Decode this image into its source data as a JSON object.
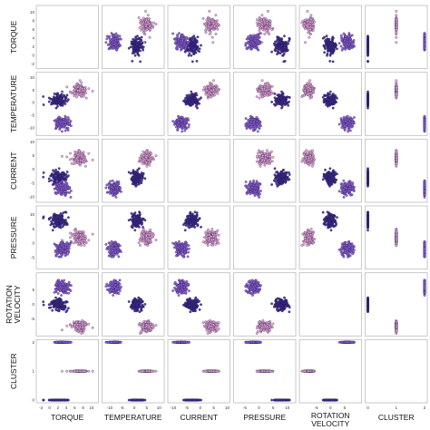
{
  "chart_data": {
    "type": "scatter",
    "kind": "pair-plot",
    "variables": [
      "TORQUE",
      "TEMPERATURE",
      "CURRENT",
      "PRESSURE",
      "ROTATION\nVELOCITY",
      "CLUSTER"
    ],
    "column_labels": [
      "TORQUE",
      "TEMPERATURE",
      "CURRENT",
      "PRESSURE",
      "ROTATION VELOCITY",
      "CLUSTER"
    ],
    "row_labels": [
      "TORQUE",
      "TEMPERATURE",
      "CURRENT",
      "PRESSURE",
      "ROTATION VELOCITY",
      "CLUSTER"
    ],
    "ticks": {
      "TORQUE": [
        -2,
        0,
        2,
        4,
        6,
        8,
        10
      ],
      "TEMPERATURE": [
        -10,
        -5,
        0,
        5,
        10
      ],
      "CURRENT": [
        -10,
        -5,
        0,
        5,
        10
      ],
      "PRESSURE": [
        -5,
        0,
        5,
        10
      ],
      "ROTATION VELOCITY": [
        -5,
        0,
        5
      ],
      "CLUSTER": [
        0,
        1,
        2
      ]
    },
    "ranges": {
      "TORQUE": [
        -2.5,
        11
      ],
      "TEMPERATURE": [
        -12,
        11
      ],
      "CURRENT": [
        -11,
        10
      ],
      "PRESSURE": [
        -8,
        12
      ],
      "ROTATION VELOCITY": [
        -10,
        10
      ],
      "CLUSTER": [
        0,
        2
      ]
    },
    "clusters": [
      {
        "id": 0,
        "color": "#3d2a8c",
        "means": {
          "TORQUE": 2,
          "TEMPERATURE": 1,
          "CURRENT": -3,
          "PRESSURE": 8,
          "ROTATION VELOCITY": 0
        },
        "spread": {
          "TORQUE": 1.0,
          "TEMPERATURE": 1.2,
          "CURRENT": 1.2,
          "PRESSURE": 1.2,
          "ROTATION VELOCITY": 1.0
        }
      },
      {
        "id": 1,
        "color": "#e8a6d2",
        "means": {
          "TORQUE": 7,
          "TEMPERATURE": 5,
          "CURRENT": 4,
          "PRESSURE": 2,
          "ROTATION VELOCITY": -7.5
        },
        "spread": {
          "TORQUE": 1.0,
          "TEMPERATURE": 1.2,
          "CURRENT": 1.2,
          "PRESSURE": 1.2,
          "ROTATION VELOCITY": 1.0
        }
      },
      {
        "id": 2,
        "color": "#8a5fd0",
        "means": {
          "TORQUE": 3,
          "TEMPERATURE": -8,
          "CURRENT": -7,
          "PRESSURE": -2,
          "ROTATION VELOCITY": 6
        },
        "spread": {
          "TORQUE": 1.0,
          "TEMPERATURE": 1.2,
          "CURRENT": 1.2,
          "PRESSURE": 1.2,
          "ROTATION VELOCITY": 1.0
        }
      }
    ],
    "cluster_colors": [
      "#3d2a8c",
      "#e8a6d2",
      "#8a5fd0"
    ],
    "grid": false,
    "legend": "none"
  }
}
